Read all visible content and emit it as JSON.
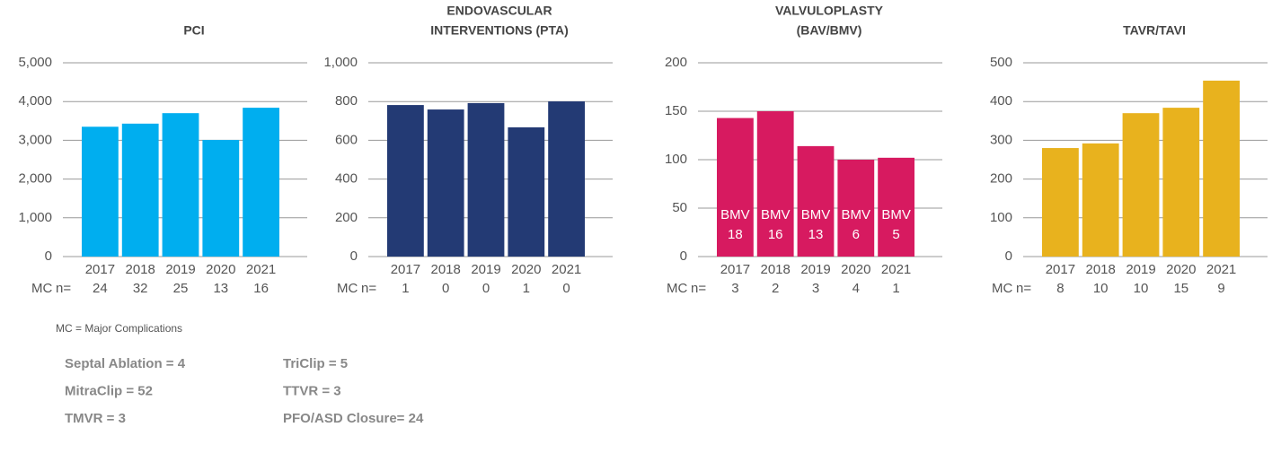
{
  "chart_data": [
    {
      "type": "bar",
      "title": [
        "PCI"
      ],
      "categories": [
        "2017",
        "2018",
        "2019",
        "2020",
        "2021"
      ],
      "values": [
        3350,
        3430,
        3700,
        3010,
        3840
      ],
      "color": "#00aeef",
      "ylim": [
        0,
        5000
      ],
      "yticks": [
        0,
        {
          "value": 1000,
          "label": "1,000"
        },
        {
          "value": 2000,
          "label": "2,000"
        },
        {
          "value": 3000,
          "label": "3,000"
        },
        {
          "value": 4000,
          "label": "4,000"
        },
        {
          "value": 5000,
          "label": "5,000"
        }
      ],
      "grid": true,
      "mc_label": "MC",
      "n_label": "n=",
      "mc_values": [
        24,
        32,
        25,
        13,
        16
      ]
    },
    {
      "type": "bar",
      "title": [
        "ENDOVASCULAR",
        "INTERVENTIONS (PTA)"
      ],
      "categories": [
        "2017",
        "2018",
        "2019",
        "2020",
        "2021"
      ],
      "values": [
        782,
        759,
        792,
        667,
        801
      ],
      "color": "#233a74",
      "ylim": [
        0,
        1000
      ],
      "yticks": [
        0,
        200,
        400,
        600,
        800,
        {
          "value": 1000,
          "label": "1,000"
        }
      ],
      "grid": true,
      "mc_label": "MC",
      "n_label": "n=",
      "mc_values": [
        1,
        0,
        0,
        1,
        0
      ]
    },
    {
      "type": "bar",
      "title": [
        "VALVULOPLASTY",
        "(BAV/BMV)"
      ],
      "categories": [
        "2017",
        "2018",
        "2019",
        "2020",
        "2021"
      ],
      "values": [
        143,
        150,
        114,
        100,
        102
      ],
      "color": "#d71a60",
      "ylim": [
        0,
        200
      ],
      "yticks": [
        0,
        50,
        100,
        150,
        200
      ],
      "grid": true,
      "inner_label": "BMV",
      "inner_values": [
        18,
        16,
        13,
        6,
        5
      ],
      "mc_label": "MC",
      "n_label": "n=",
      "mc_values": [
        3,
        2,
        3,
        4,
        1
      ]
    },
    {
      "type": "bar",
      "title": [
        "TAVR/TAVI"
      ],
      "categories": [
        "2017",
        "2018",
        "2019",
        "2020",
        "2021"
      ],
      "values": [
        280,
        292,
        370,
        384,
        454
      ],
      "color": "#e8b21e",
      "ylim": [
        0,
        500
      ],
      "yticks": [
        0,
        100,
        200,
        300,
        400,
        500
      ],
      "grid": true,
      "mc_label": "MC",
      "n_label": "n=",
      "mc_values": [
        8,
        10,
        10,
        15,
        9
      ]
    }
  ],
  "footnote": "MC = Major Complications",
  "procedures": [
    [
      "Septal Ablation = 4",
      "MitraClip = 52",
      "TMVR = 3"
    ],
    [
      "TriClip = 5",
      "TTVR = 3",
      "PFO/ASD Closure= 24"
    ]
  ]
}
